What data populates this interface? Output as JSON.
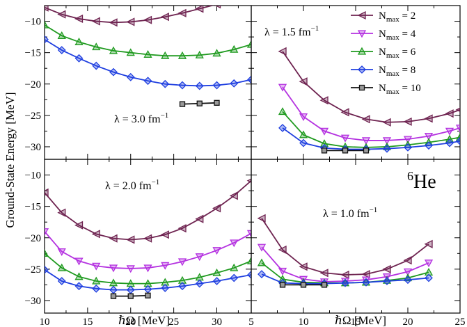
{
  "figure": {
    "ylabel": "Ground-State Energy [MeV]",
    "xlabel": "ℏΩ [MeV]",
    "nucleus": {
      "mass": "6",
      "symbol": "He"
    }
  },
  "chart_data": {
    "type": "line",
    "ylabel": "Ground-State Energy [MeV]",
    "xlabel": "ℏΩ [MeV]",
    "legend": {
      "placement": "top-right",
      "entries": [
        {
          "key": "N2",
          "sub": "max",
          "text": " = 2",
          "color": "#6e2350",
          "marker": "tri-left"
        },
        {
          "key": "N4",
          "sub": "max",
          "text": " = 4",
          "color": "#b431e0",
          "marker": "tri-down"
        },
        {
          "key": "N6",
          "sub": "max",
          "text": " = 6",
          "color": "#1f9a1f",
          "marker": "tri-up"
        },
        {
          "key": "N8",
          "sub": "max",
          "text": " = 8",
          "color": "#1f3fe0",
          "marker": "diamond"
        },
        {
          "key": "N10",
          "sub": "max",
          "text": " = 10",
          "color": "#111111",
          "marker": "square"
        }
      ]
    },
    "ylim": [
      -32,
      -7.5
    ],
    "yticks": [
      -10,
      -15,
      -20,
      -25,
      -30
    ],
    "panels": [
      {
        "id": "tl",
        "row": 0,
        "col": 0,
        "annotation": {
          "main": "λ = 3.0 fm",
          "sup": "−1"
        },
        "xlim": [
          10,
          34
        ],
        "xticks": [
          10,
          15,
          20,
          25,
          30
        ],
        "series": {
          "N2": {
            "x": [
              10,
              12,
              14,
              16,
              18,
              20,
              22,
              24,
              26,
              28,
              30,
              32,
              34
            ],
            "y": [
              -7.8,
              -8.9,
              -9.6,
              -10.0,
              -10.2,
              -10.1,
              -9.8,
              -9.3,
              -8.7,
              -8.0,
              -7.3,
              -6.6,
              -5.8
            ]
          },
          "N4": {
            "x": [],
            "y": []
          },
          "N6": {
            "x": [
              10,
              12,
              14,
              16,
              18,
              20,
              22,
              24,
              26,
              28,
              30,
              32,
              34
            ],
            "y": [
              -10.6,
              -12.3,
              -13.3,
              -14.1,
              -14.7,
              -15.0,
              -15.3,
              -15.5,
              -15.5,
              -15.4,
              -15.1,
              -14.5,
              -13.7
            ]
          },
          "N8": {
            "x": [
              10,
              12,
              14,
              16,
              18,
              20,
              22,
              24,
              26,
              28,
              30,
              32,
              34
            ],
            "y": [
              -12.9,
              -14.6,
              -15.9,
              -17.1,
              -18.1,
              -18.9,
              -19.5,
              -20.0,
              -20.2,
              -20.3,
              -20.2,
              -19.9,
              -19.3
            ]
          },
          "N10": {
            "x": [
              26,
              28,
              30
            ],
            "y": [
              -23.2,
              -23.1,
              -23.0
            ]
          }
        }
      },
      {
        "id": "tr",
        "row": 0,
        "col": 1,
        "annotation": {
          "main": "λ = 1.5 fm",
          "sup": "−1"
        },
        "xlim": [
          5,
          25
        ],
        "xticks": [
          5,
          10,
          15,
          20,
          25
        ],
        "series": {
          "N2": {
            "x": [
              8,
              10,
              12,
              14,
              16,
              18,
              20,
              22,
              24,
              25
            ],
            "y": [
              -14.8,
              -19.6,
              -22.6,
              -24.5,
              -25.6,
              -26.1,
              -26.0,
              -25.5,
              -24.7,
              -24.1
            ]
          },
          "N4": {
            "x": [
              8,
              10,
              12,
              14,
              16,
              18,
              20,
              22,
              24,
              25
            ],
            "y": [
              -20.5,
              -25.2,
              -27.5,
              -28.6,
              -29.0,
              -29.0,
              -28.8,
              -28.3,
              -27.5,
              -27.0
            ]
          },
          "N6": {
            "x": [
              8,
              10,
              12,
              14,
              16,
              18,
              20,
              22,
              24,
              25
            ],
            "y": [
              -24.4,
              -28.1,
              -29.5,
              -30.0,
              -30.1,
              -30.0,
              -29.7,
              -29.3,
              -28.8,
              -28.5
            ]
          },
          "N8": {
            "x": [
              8,
              10,
              12,
              14,
              16,
              18,
              20,
              22,
              24,
              25
            ],
            "y": [
              -27.0,
              -29.4,
              -30.2,
              -30.4,
              -30.4,
              -30.3,
              -30.1,
              -29.8,
              -29.4,
              -29.1
            ]
          },
          "N10": {
            "x": [
              12,
              14,
              16
            ],
            "y": [
              -30.6,
              -30.6,
              -30.6
            ]
          }
        }
      },
      {
        "id": "bl",
        "row": 1,
        "col": 0,
        "annotation": {
          "main": "λ = 2.0 fm",
          "sup": "−1"
        },
        "xlim": [
          10,
          34
        ],
        "xticks": [
          10,
          15,
          20,
          25,
          30
        ],
        "series": {
          "N2": {
            "x": [
              10,
              12,
              14,
              16,
              18,
              20,
              22,
              24,
              26,
              28,
              30,
              32,
              34
            ],
            "y": [
              -12.8,
              -16.0,
              -18.0,
              -19.4,
              -20.1,
              -20.3,
              -20.1,
              -19.5,
              -18.5,
              -17.0,
              -15.3,
              -13.3,
              -10.9
            ]
          },
          "N4": {
            "x": [
              10,
              12,
              14,
              16,
              18,
              20,
              22,
              24,
              26,
              28,
              30,
              32,
              34
            ],
            "y": [
              -19.0,
              -22.2,
              -23.7,
              -24.5,
              -24.8,
              -24.9,
              -24.8,
              -24.4,
              -23.8,
              -23.0,
              -22.0,
              -20.8,
              -19.3
            ]
          },
          "N6": {
            "x": [
              10,
              12,
              14,
              16,
              18,
              20,
              22,
              24,
              26,
              28,
              30,
              32,
              34
            ],
            "y": [
              -22.5,
              -24.8,
              -26.2,
              -26.9,
              -27.2,
              -27.3,
              -27.3,
              -27.1,
              -26.8,
              -26.3,
              -25.6,
              -24.8,
              -23.7
            ]
          },
          "N8": {
            "x": [
              10,
              12,
              14,
              16,
              18,
              20,
              22,
              24,
              26,
              28,
              30,
              32,
              34
            ],
            "y": [
              -25.1,
              -26.9,
              -27.7,
              -28.1,
              -28.3,
              -28.3,
              -28.2,
              -28.0,
              -27.7,
              -27.3,
              -26.9,
              -26.4,
              -25.9
            ]
          },
          "N10": {
            "x": [
              18,
              20,
              22
            ],
            "y": [
              -29.3,
              -29.3,
              -29.2
            ]
          }
        }
      },
      {
        "id": "br",
        "row": 1,
        "col": 1,
        "annotation": {
          "main": "λ = 1.0 fm",
          "sup": "−1"
        },
        "xlim": [
          5,
          25
        ],
        "xticks": [
          5,
          10,
          15,
          20,
          25
        ],
        "series": {
          "N2": {
            "x": [
              6,
              8,
              10,
              12,
              14,
              16,
              18,
              20,
              22
            ],
            "y": [
              -16.9,
              -21.9,
              -24.6,
              -25.6,
              -25.9,
              -25.8,
              -25.0,
              -23.6,
              -21.0
            ]
          },
          "N4": {
            "x": [
              6,
              8,
              10,
              12,
              14,
              16,
              18,
              20,
              22
            ],
            "y": [
              -21.5,
              -25.3,
              -26.6,
              -27.0,
              -26.9,
              -26.7,
              -26.2,
              -25.4,
              -24.0
            ]
          },
          "N6": {
            "x": [
              6,
              8,
              10,
              12,
              14,
              16,
              18,
              20,
              22
            ],
            "y": [
              -24.0,
              -26.6,
              -27.1,
              -27.2,
              -27.2,
              -27.1,
              -26.8,
              -26.4,
              -25.5
            ]
          },
          "N8": {
            "x": [
              6,
              8,
              10,
              12,
              14,
              16,
              18,
              20,
              22
            ],
            "y": [
              -25.8,
              -27.2,
              -27.3,
              -27.3,
              -27.2,
              -27.1,
              -26.9,
              -26.7,
              -26.4
            ]
          },
          "N10": {
            "x": [
              8,
              10,
              12
            ],
            "y": [
              -27.5,
              -27.5,
              -27.5
            ]
          }
        }
      }
    ]
  }
}
